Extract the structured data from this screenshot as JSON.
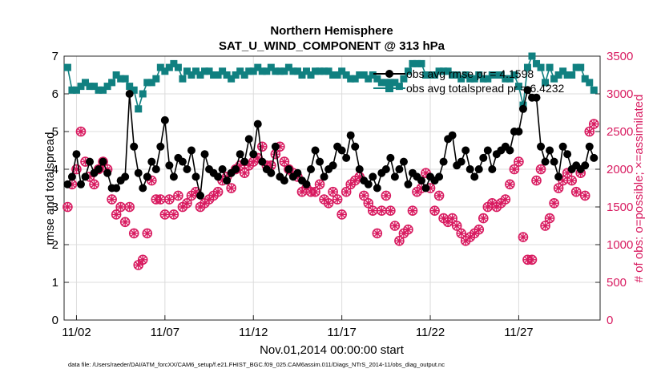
{
  "chart_data": {
    "type": "line",
    "title": "Northern Hemisphere",
    "subtitle": "SAT_U_WIND_COMPONENT @ 313 hPa",
    "xlabel": "Nov.01,2014 00:00:00 start",
    "ylabel": "rmse and totalspread",
    "y2label": "# of obs: o=possible; ×=assimilated",
    "x_tick_labels": [
      "11/02",
      "11/07",
      "11/12",
      "11/17",
      "11/22",
      "11/27"
    ],
    "x_tick_values": [
      1.5,
      6.5,
      11.5,
      16.5,
      21.5,
      26.5
    ],
    "xlim": [
      0.8,
      31.1
    ],
    "ylim": [
      0,
      7
    ],
    "y2lim": [
      0,
      3500
    ],
    "y_ticks": [
      0,
      1,
      2,
      3,
      4,
      5,
      6,
      7
    ],
    "y2_ticks": [
      0,
      500,
      1000,
      1500,
      2000,
      2500,
      3000,
      3500
    ],
    "grid": true,
    "legend_position": "top-right",
    "colors": {
      "rmse": "#000000",
      "spread": "#108080",
      "obs": "#d81b60"
    },
    "legend": [
      "obs avg rmse pr = 4.1598",
      "obs avg totalspread pr = 6.4232"
    ],
    "series": [
      {
        "name": "obs avg rmse pr = 4.1598",
        "axis": "left",
        "x": [
          1.0,
          1.25,
          1.5,
          1.75,
          2.0,
          2.25,
          2.5,
          2.75,
          3.0,
          3.25,
          3.5,
          3.75,
          4.0,
          4.25,
          4.5,
          4.75,
          5.0,
          5.25,
          5.5,
          5.75,
          6.0,
          6.25,
          6.5,
          6.75,
          7.0,
          7.25,
          7.5,
          7.75,
          8.0,
          8.25,
          8.5,
          8.75,
          9.0,
          9.25,
          9.5,
          9.75,
          10.0,
          10.25,
          10.5,
          10.75,
          11.0,
          11.25,
          11.5,
          11.75,
          12.0,
          12.25,
          12.5,
          12.75,
          13.0,
          13.25,
          13.5,
          13.75,
          14.0,
          14.25,
          14.5,
          14.75,
          15.0,
          15.25,
          15.5,
          15.75,
          16.0,
          16.25,
          16.5,
          16.75,
          17.0,
          17.25,
          17.5,
          17.75,
          18.0,
          18.25,
          18.5,
          18.75,
          19.0,
          19.25,
          19.5,
          19.75,
          20.0,
          20.25,
          20.5,
          20.75,
          21.0,
          21.25,
          21.5,
          21.75,
          22.0,
          22.25,
          22.5,
          22.75,
          23.0,
          23.25,
          23.5,
          23.75,
          24.0,
          24.25,
          24.5,
          24.75,
          25.0,
          25.25,
          25.5,
          25.75,
          26.0,
          26.25,
          26.5,
          26.75,
          27.0,
          27.25,
          27.5,
          27.75,
          28.0,
          28.25,
          28.5,
          28.75,
          29.0,
          29.25,
          29.5,
          29.75,
          30.0,
          30.25,
          30.5,
          30.75
        ],
        "y": [
          3.6,
          3.8,
          4.4,
          3.6,
          3.8,
          4.2,
          3.9,
          4.0,
          4.2,
          3.9,
          3.5,
          3.5,
          3.7,
          3.8,
          6.0,
          4.6,
          3.9,
          3.5,
          3.8,
          4.2,
          4.0,
          4.6,
          5.3,
          4.1,
          3.8,
          4.3,
          4.2,
          4.0,
          4.5,
          3.8,
          3.3,
          4.4,
          4.0,
          3.9,
          3.8,
          4.0,
          3.7,
          3.9,
          4.0,
          4.4,
          4.2,
          4.8,
          4.4,
          5.2,
          4.2,
          4.0,
          3.9,
          4.6,
          3.8,
          3.7,
          4.0,
          3.8,
          3.9,
          3.7,
          3.6,
          4.0,
          4.5,
          4.2,
          3.8,
          4.0,
          4.1,
          4.6,
          4.5,
          4.3,
          4.9,
          4.6,
          4.0,
          3.7,
          3.6,
          3.8,
          3.5,
          3.9,
          4.0,
          4.3,
          3.8,
          4.0,
          4.2,
          3.6,
          3.9,
          3.8,
          3.7,
          3.5,
          3.8,
          3.7,
          3.8,
          4.2,
          4.8,
          4.9,
          4.1,
          4.2,
          4.5,
          4.0,
          3.8,
          4.0,
          4.3,
          4.5,
          4.0,
          4.4,
          4.5,
          4.6,
          4.5,
          5.0,
          5.0,
          5.6,
          6.1,
          5.9,
          5.9,
          4.6,
          4.2,
          4.5,
          4.2,
          3.8,
          4.6,
          4.4,
          4.0,
          4.1,
          4.0,
          4.1,
          4.6,
          4.3
        ]
      },
      {
        "name": "obs avg totalspread pr = 6.4232",
        "axis": "left",
        "x": [
          1.0,
          1.25,
          1.5,
          1.75,
          2.0,
          2.25,
          2.5,
          2.75,
          3.0,
          3.25,
          3.5,
          3.75,
          4.0,
          4.25,
          4.5,
          4.75,
          5.0,
          5.25,
          5.5,
          5.75,
          6.0,
          6.25,
          6.5,
          6.75,
          7.0,
          7.25,
          7.5,
          7.75,
          8.0,
          8.25,
          8.5,
          8.75,
          9.0,
          9.25,
          9.5,
          9.75,
          10.0,
          10.25,
          10.5,
          10.75,
          11.0,
          11.25,
          11.5,
          11.75,
          12.0,
          12.25,
          12.5,
          12.75,
          13.0,
          13.25,
          13.5,
          13.75,
          14.0,
          14.25,
          14.5,
          14.75,
          15.0,
          15.25,
          15.5,
          15.75,
          16.0,
          16.25,
          16.5,
          16.75,
          17.0,
          17.25,
          17.5,
          17.75,
          18.0,
          18.25,
          18.5,
          18.75,
          19.0,
          19.25,
          19.5,
          19.75,
          20.0,
          20.25,
          20.5,
          20.75,
          21.0,
          21.25,
          21.5,
          21.75,
          22.0,
          22.25,
          22.5,
          22.75,
          23.0,
          23.25,
          23.5,
          23.75,
          24.0,
          24.25,
          24.5,
          24.75,
          25.0,
          25.25,
          25.5,
          25.75,
          26.0,
          26.25,
          26.5,
          26.75,
          27.0,
          27.25,
          27.5,
          27.75,
          28.0,
          28.25,
          28.5,
          28.75,
          29.0,
          29.25,
          29.5,
          29.75,
          30.0,
          30.25,
          30.5,
          30.75
        ],
        "y": [
          6.7,
          6.1,
          6.1,
          6.2,
          6.3,
          6.2,
          6.2,
          6.1,
          6.1,
          6.2,
          6.3,
          6.5,
          6.4,
          6.4,
          6.2,
          6.1,
          5.6,
          6.0,
          6.3,
          6.3,
          6.4,
          6.7,
          6.6,
          6.7,
          6.8,
          6.7,
          6.4,
          6.6,
          6.5,
          6.6,
          6.5,
          6.6,
          6.6,
          6.5,
          6.5,
          6.6,
          6.5,
          6.4,
          6.5,
          6.6,
          6.5,
          6.6,
          6.6,
          6.7,
          6.6,
          6.6,
          6.7,
          6.6,
          6.6,
          6.6,
          6.7,
          6.6,
          6.6,
          6.5,
          6.6,
          6.5,
          6.6,
          6.6,
          6.6,
          6.6,
          6.5,
          6.5,
          6.6,
          6.5,
          6.4,
          6.4,
          6.5,
          6.5,
          6.4,
          6.5,
          6.4,
          6.3,
          6.3,
          6.3,
          6.3,
          6.2,
          6.4,
          6.6,
          6.8,
          6.8,
          6.8,
          6.5,
          6.5,
          6.5,
          6.6,
          6.6,
          6.6,
          6.5,
          6.5,
          6.4,
          6.5,
          6.4,
          6.4,
          6.5,
          6.4,
          6.4,
          6.5,
          6.5,
          6.5,
          6.4,
          6.4,
          6.5,
          6.2,
          5.7,
          6.7,
          7.0,
          6.8,
          6.7,
          6.3,
          6.7,
          6.4,
          6.5,
          6.6,
          6.5,
          6.5,
          6.7,
          6.7,
          6.4,
          6.3,
          6.1
        ]
      },
      {
        "name": "# of obs possible",
        "axis": "right",
        "x": [
          1.0,
          1.25,
          1.5,
          1.75,
          2.0,
          2.25,
          2.5,
          2.75,
          3.0,
          3.25,
          3.5,
          3.75,
          4.0,
          4.25,
          4.5,
          4.75,
          5.0,
          5.25,
          5.5,
          5.75,
          6.0,
          6.25,
          6.5,
          6.75,
          7.0,
          7.25,
          7.5,
          7.75,
          8.0,
          8.25,
          8.5,
          8.75,
          9.0,
          9.25,
          9.5,
          9.75,
          10.0,
          10.25,
          10.5,
          10.75,
          11.0,
          11.25,
          11.5,
          11.75,
          12.0,
          12.25,
          12.5,
          12.75,
          13.0,
          13.25,
          13.5,
          13.75,
          14.0,
          14.25,
          14.5,
          14.75,
          15.0,
          15.25,
          15.5,
          15.75,
          16.0,
          16.25,
          16.5,
          16.75,
          17.0,
          17.25,
          17.5,
          17.75,
          18.0,
          18.25,
          18.5,
          18.75,
          19.0,
          19.25,
          19.5,
          19.75,
          20.0,
          20.25,
          20.5,
          20.75,
          21.0,
          21.25,
          21.5,
          21.75,
          22.0,
          22.25,
          22.5,
          22.75,
          23.0,
          23.25,
          23.5,
          23.75,
          24.0,
          24.25,
          24.5,
          24.75,
          25.0,
          25.25,
          25.5,
          25.75,
          26.0,
          26.25,
          26.5,
          26.75,
          27.0,
          27.25,
          27.5,
          27.75,
          28.0,
          28.25,
          28.5,
          28.75,
          29.0,
          29.25,
          29.5,
          29.75,
          30.0,
          30.25,
          30.5,
          30.75
        ],
        "y": [
          1500,
          1800,
          2000,
          2500,
          2100,
          1900,
          1800,
          2000,
          2100,
          2000,
          1600,
          1400,
          1500,
          1300,
          1500,
          1150,
          730,
          800,
          1150,
          1850,
          1600,
          1600,
          1400,
          1600,
          1400,
          1650,
          1500,
          1550,
          1650,
          1700,
          1500,
          1550,
          1600,
          1650,
          1700,
          1850,
          1900,
          1750,
          2000,
          2050,
          1950,
          2050,
          2100,
          2150,
          2300,
          2050,
          2050,
          2200,
          2300,
          2100,
          2000,
          1950,
          1900,
          1700,
          1750,
          1700,
          1700,
          1800,
          1600,
          1550,
          1700,
          1600,
          1400,
          1700,
          1800,
          1850,
          1900,
          1650,
          1550,
          1450,
          1150,
          1450,
          1650,
          1450,
          1250,
          1050,
          1150,
          1200,
          1450,
          1700,
          1750,
          1950,
          1750,
          1450,
          1650,
          1350,
          1300,
          1350,
          1250,
          1150,
          1050,
          1100,
          1150,
          1200,
          1350,
          1500,
          1550,
          1500,
          1550,
          1600,
          1800,
          2000,
          2100,
          1100,
          800,
          800,
          1850,
          2000,
          1250,
          1350,
          1550,
          1750,
          1850,
          1950,
          1850,
          1700,
          1950,
          1650,
          2500,
          2600
        ]
      },
      {
        "name": "# of obs assimilated",
        "axis": "right",
        "x": [
          1.0,
          1.25,
          1.5,
          1.75,
          2.0,
          2.25,
          2.5,
          2.75,
          3.0,
          3.25,
          3.5,
          3.75,
          4.0,
          4.25,
          4.5,
          4.75,
          5.0,
          5.25,
          5.5,
          5.75,
          6.0,
          6.25,
          6.5,
          6.75,
          7.0,
          7.25,
          7.5,
          7.75,
          8.0,
          8.25,
          8.5,
          8.75,
          9.0,
          9.25,
          9.5,
          9.75,
          10.0,
          10.25,
          10.5,
          10.75,
          11.0,
          11.25,
          11.5,
          11.75,
          12.0,
          12.25,
          12.5,
          12.75,
          13.0,
          13.25,
          13.5,
          13.75,
          14.0,
          14.25,
          14.5,
          14.75,
          15.0,
          15.25,
          15.5,
          15.75,
          16.0,
          16.25,
          16.5,
          16.75,
          17.0,
          17.25,
          17.5,
          17.75,
          18.0,
          18.25,
          18.5,
          18.75,
          19.0,
          19.25,
          19.5,
          19.75,
          20.0,
          20.25,
          20.5,
          20.75,
          21.0,
          21.25,
          21.5,
          21.75,
          22.0,
          22.25,
          22.5,
          22.75,
          23.0,
          23.25,
          23.5,
          23.75,
          24.0,
          24.25,
          24.5,
          24.75,
          25.0,
          25.25,
          25.5,
          25.75,
          26.0,
          26.25,
          26.5,
          26.75,
          27.0,
          27.25,
          27.5,
          27.75,
          28.0,
          28.25,
          28.5,
          28.75,
          29.0,
          29.25,
          29.5,
          29.75,
          30.0,
          30.25,
          30.5,
          30.75
        ],
        "y": [
          1500,
          1800,
          2000,
          2500,
          2100,
          1900,
          1800,
          2000,
          2100,
          2000,
          1600,
          1400,
          1500,
          1300,
          1500,
          1150,
          730,
          800,
          1150,
          1850,
          1600,
          1600,
          1400,
          1600,
          1400,
          1650,
          1500,
          1550,
          1650,
          1700,
          1500,
          1550,
          1600,
          1650,
          1700,
          1850,
          1900,
          1750,
          2000,
          2050,
          1950,
          2050,
          2100,
          2150,
          2300,
          2050,
          2050,
          2200,
          2300,
          2100,
          2000,
          1950,
          1900,
          1700,
          1750,
          1700,
          1700,
          1800,
          1600,
          1550,
          1700,
          1600,
          1400,
          1700,
          1800,
          1850,
          1900,
          1650,
          1550,
          1450,
          1150,
          1450,
          1650,
          1450,
          1250,
          1050,
          1150,
          1200,
          1450,
          1700,
          1750,
          1950,
          1750,
          1450,
          1650,
          1350,
          1300,
          1350,
          1250,
          1150,
          1050,
          1100,
          1150,
          1200,
          1350,
          1500,
          1550,
          1500,
          1550,
          1600,
          1800,
          2000,
          2100,
          1100,
          800,
          800,
          1850,
          2000,
          1250,
          1350,
          1550,
          1750,
          1850,
          1950,
          1850,
          1700,
          1950,
          1650,
          2500,
          2600
        ]
      }
    ]
  },
  "footer": "data file: /Users/raeder/DAI/ATM_forcXX/CAM6_setup/f.e21.FHIST_BGC.f09_025.CAM6assim.011/Diags_NTrS_2014-11/obs_diag_output.nc"
}
